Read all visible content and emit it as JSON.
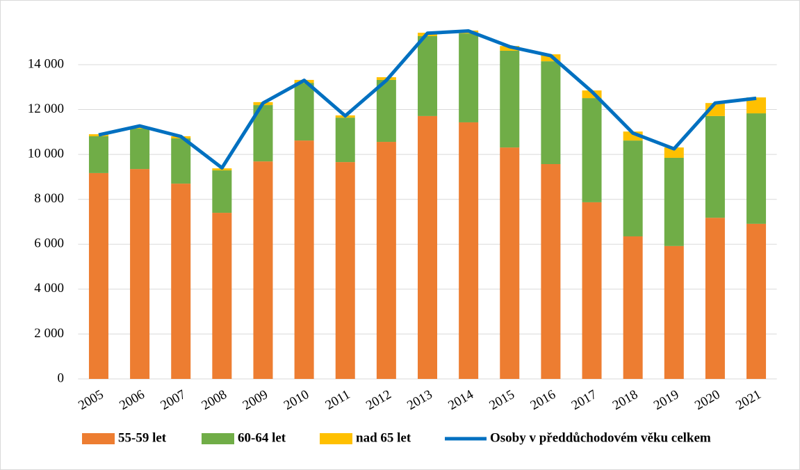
{
  "chart_data": {
    "type": "bar",
    "stacked": true,
    "categories": [
      "2005",
      "2006",
      "2007",
      "2008",
      "2009",
      "2010",
      "2011",
      "2012",
      "2013",
      "2014",
      "2015",
      "2016",
      "2017",
      "2018",
      "2019",
      "2020",
      "2021"
    ],
    "series": [
      {
        "name": "55-59 let",
        "type": "bar",
        "color": "#ed7d31",
        "values": [
          9170,
          9350,
          8700,
          7400,
          9690,
          10620,
          9660,
          10560,
          11710,
          11430,
          10310,
          9570,
          7870,
          6350,
          5920,
          7180,
          6910
        ]
      },
      {
        "name": "60-64 let",
        "type": "bar",
        "color": "#70ad47",
        "values": [
          1640,
          1800,
          2015,
          1890,
          2510,
          2570,
          1980,
          2760,
          3560,
          3960,
          4310,
          4580,
          4640,
          4270,
          3930,
          4530,
          4920
        ]
      },
      {
        "name": "nad 65 let",
        "type": "bar",
        "color": "#ffc000",
        "values": [
          90,
          90,
          95,
          90,
          130,
          130,
          100,
          120,
          150,
          130,
          210,
          310,
          340,
          400,
          460,
          580,
          710
        ]
      },
      {
        "name": "Osoby v předdůchodovém věku celkem",
        "type": "line",
        "color": "#0070c0",
        "values": [
          10870,
          11270,
          10800,
          9400,
          12290,
          13300,
          11720,
          13300,
          15400,
          15500,
          14800,
          14400,
          12800,
          10950,
          10250,
          12290,
          12500
        ]
      }
    ],
    "ylim": [
      0,
      16000
    ],
    "yticks": [
      0,
      {
        "value": 2000,
        "label": "2 000"
      },
      {
        "value": 4000,
        "label": "4 000"
      },
      {
        "value": 6000,
        "label": "6 000"
      },
      {
        "value": 8000,
        "label": "8 000"
      },
      {
        "value": 10000,
        "label": "10 000"
      },
      {
        "value": 12000,
        "label": "12 000"
      },
      {
        "value": 14000,
        "label": "14 000"
      }
    ],
    "grid": true,
    "legend": "bottom"
  }
}
